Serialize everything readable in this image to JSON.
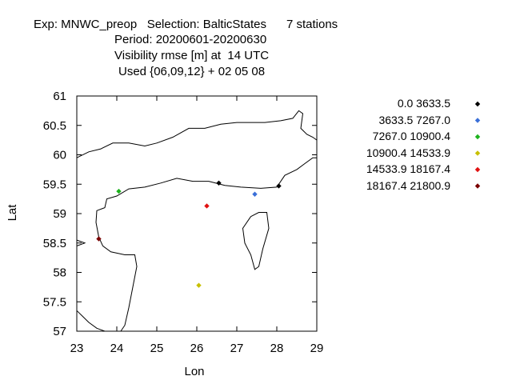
{
  "chart_data": {
    "type": "scatter",
    "title_lines": [
      "Exp: MNWC_preop   Selection: BalticStates      7 stations",
      "Period: 20200601-20200630",
      "Visibility rmse [m] at  14 UTC",
      "Used {06,09,12} + 02 05 08"
    ],
    "xlabel": "Lon",
    "ylabel": "Lat",
    "xlim": [
      23,
      29
    ],
    "ylim": [
      57,
      61
    ],
    "x_ticks": [
      "23",
      "24",
      "25",
      "26",
      "27",
      "28",
      "29"
    ],
    "y_ticks": [
      "57",
      "57.5",
      "58",
      "58.5",
      "59",
      "59.5",
      "60",
      "60.5",
      "61"
    ],
    "grid": false,
    "legend_position": "right",
    "series": [
      {
        "name": "0.0 3633.5",
        "color": "#000000",
        "points": [
          [
            26.55,
            59.52
          ],
          [
            28.05,
            59.47
          ]
        ]
      },
      {
        "name": "3633.5 7267.0",
        "color": "#3a6fd8",
        "points": [
          [
            27.45,
            59.33
          ]
        ]
      },
      {
        "name": "7267.0 10900.4",
        "color": "#1db31d",
        "points": [
          [
            24.05,
            59.38
          ]
        ]
      },
      {
        "name": "10900.4 14533.9",
        "color": "#c8c000",
        "points": [
          [
            26.05,
            57.78
          ]
        ]
      },
      {
        "name": "14533.9 18167.4",
        "color": "#e01010",
        "points": [
          [
            26.25,
            59.13
          ]
        ]
      },
      {
        "name": "18167.4 21800.9",
        "color": "#7a0000",
        "points": [
          [
            23.55,
            58.57
          ]
        ]
      }
    ],
    "coastlines": [
      [
        [
          23,
          59.95
        ],
        [
          23.3,
          60.05
        ],
        [
          23.6,
          60.1
        ],
        [
          23.9,
          60.2
        ],
        [
          24.3,
          60.2
        ],
        [
          24.7,
          60.15
        ],
        [
          25.0,
          60.2
        ],
        [
          25.4,
          60.3
        ],
        [
          25.8,
          60.45
        ],
        [
          26.2,
          60.45
        ],
        [
          26.6,
          60.52
        ],
        [
          27.0,
          60.55
        ],
        [
          27.3,
          60.55
        ],
        [
          27.7,
          60.55
        ],
        [
          28.1,
          60.58
        ],
        [
          28.4,
          60.62
        ],
        [
          28.55,
          60.75
        ],
        [
          28.65,
          60.7
        ],
        [
          28.6,
          60.45
        ],
        [
          28.75,
          60.35
        ],
        [
          28.9,
          60.3
        ],
        [
          29,
          60.25
        ]
      ],
      [
        [
          23.55,
          58.6
        ],
        [
          23.48,
          58.85
        ],
        [
          23.5,
          59.05
        ],
        [
          23.7,
          59.1
        ],
        [
          23.75,
          59.25
        ],
        [
          24.0,
          59.3
        ],
        [
          24.3,
          59.42
        ],
        [
          24.7,
          59.45
        ],
        [
          25.1,
          59.52
        ],
        [
          25.5,
          59.6
        ],
        [
          25.9,
          59.55
        ],
        [
          26.3,
          59.55
        ],
        [
          26.7,
          59.48
        ],
        [
          27.1,
          59.45
        ],
        [
          27.6,
          59.43
        ],
        [
          28.0,
          59.45
        ],
        [
          28.2,
          59.65
        ],
        [
          28.5,
          59.75
        ],
        [
          28.7,
          59.85
        ],
        [
          28.9,
          59.95
        ],
        [
          29,
          59.95
        ]
      ],
      [
        [
          23.55,
          58.6
        ],
        [
          23.65,
          58.45
        ],
        [
          23.85,
          58.35
        ],
        [
          24.2,
          58.3
        ],
        [
          24.45,
          58.3
        ],
        [
          24.5,
          58.1
        ],
        [
          24.4,
          57.75
        ],
        [
          24.3,
          57.4
        ],
        [
          24.2,
          57.1
        ],
        [
          24.1,
          57.0
        ]
      ],
      [
        [
          27.35,
          58.95
        ],
        [
          27.55,
          59.02
        ],
        [
          27.75,
          59.02
        ],
        [
          27.8,
          58.75
        ],
        [
          27.65,
          58.4
        ],
        [
          27.55,
          58.1
        ],
        [
          27.45,
          58.05
        ],
        [
          27.35,
          58.3
        ],
        [
          27.2,
          58.5
        ],
        [
          27.15,
          58.75
        ],
        [
          27.35,
          58.95
        ]
      ],
      [
        [
          23,
          58.55
        ],
        [
          23.2,
          58.5
        ],
        [
          23.0,
          58.45
        ]
      ],
      [
        [
          23,
          57.35
        ],
        [
          23.15,
          57.25
        ],
        [
          23.3,
          57.15
        ],
        [
          23.5,
          57.05
        ],
        [
          23.7,
          57.0
        ]
      ]
    ]
  }
}
